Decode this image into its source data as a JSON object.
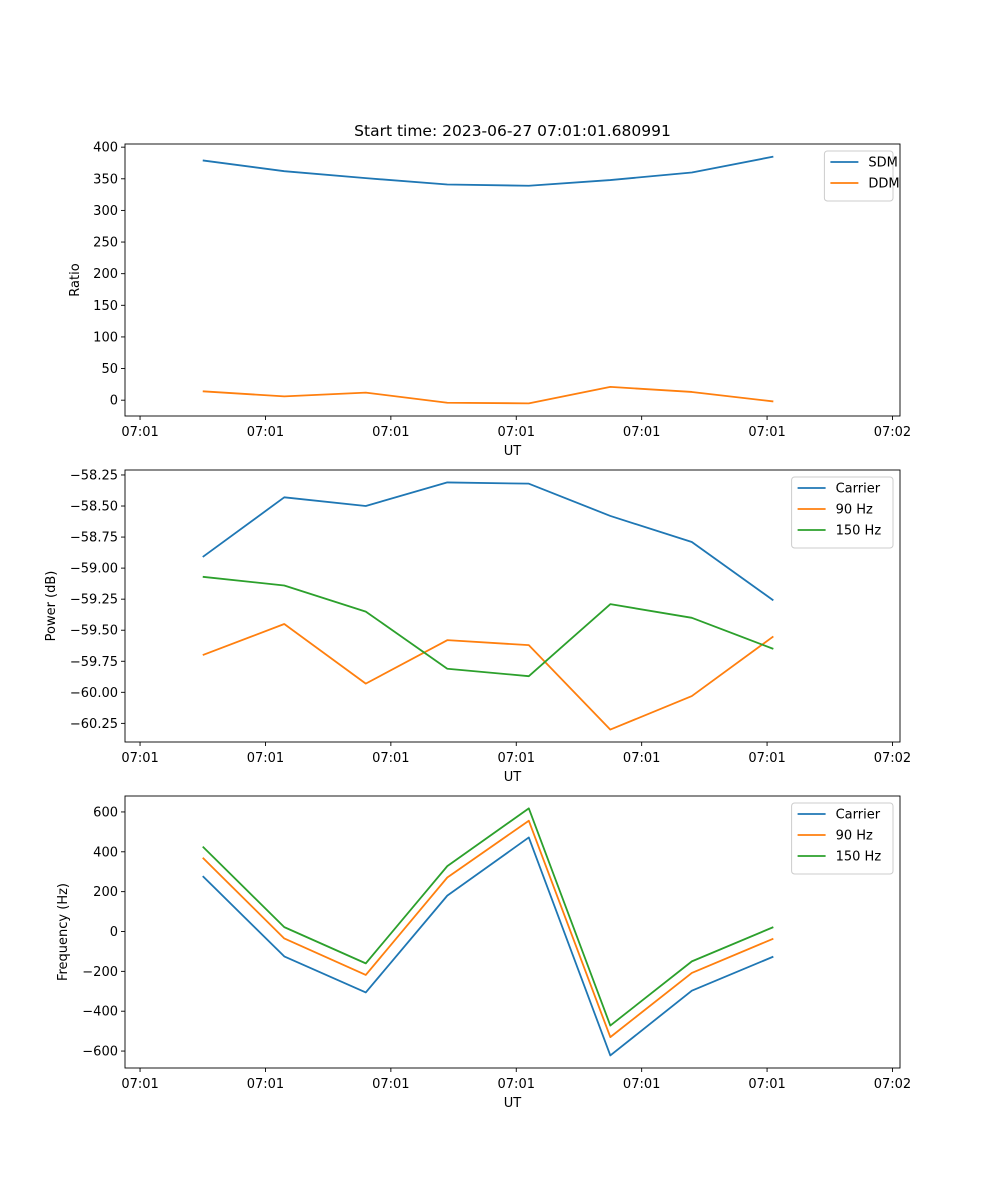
{
  "figure": {
    "title": "Start time: 2023-06-27 07:01:01.680991"
  },
  "colors": {
    "blue": "#1f77b4",
    "orange": "#ff7f0e",
    "green": "#2ca02c"
  },
  "chart_data": [
    {
      "type": "line",
      "title": "Start time: 2023-06-27 07:01:01.680991",
      "xlabel": "UT",
      "ylabel": "Ratio",
      "x_ticks": [
        "07:01",
        "07:01",
        "07:01",
        "07:01",
        "07:01",
        "07:01",
        "07:02"
      ],
      "x": [
        0.5,
        1.15,
        1.8,
        2.45,
        3.1,
        3.75,
        4.4,
        5.05
      ],
      "xlim": [
        -0.12,
        6.06
      ],
      "ylim": [
        -25,
        405
      ],
      "y_ticks": [
        0,
        50,
        100,
        150,
        200,
        250,
        300,
        350,
        400
      ],
      "legend": "top-right",
      "series": [
        {
          "name": "SDM",
          "color": "#1f77b4",
          "values": [
            379,
            362,
            351,
            341,
            339,
            348,
            360,
            385
          ]
        },
        {
          "name": "DDM",
          "color": "#ff7f0e",
          "values": [
            14,
            6,
            12,
            -4,
            -5,
            21,
            13,
            -2
          ]
        }
      ]
    },
    {
      "type": "line",
      "title": "",
      "xlabel": "UT",
      "ylabel": "Power (dB)",
      "x_ticks": [
        "07:01",
        "07:01",
        "07:01",
        "07:01",
        "07:01",
        "07:01",
        "07:02"
      ],
      "x": [
        0.5,
        1.15,
        1.8,
        2.45,
        3.1,
        3.75,
        4.4,
        5.05
      ],
      "xlim": [
        -0.12,
        6.06
      ],
      "ylim": [
        -60.4,
        -58.21
      ],
      "y_ticks": [
        -60.25,
        -60.0,
        -59.75,
        -59.5,
        -59.25,
        -59.0,
        -58.75,
        -58.5,
        -58.25
      ],
      "y_tick_labels": [
        "−60.25",
        "−60.00",
        "−59.75",
        "−59.50",
        "−59.25",
        "−59.00",
        "−58.75",
        "−58.50",
        "−58.25"
      ],
      "legend": "top-right",
      "series": [
        {
          "name": "Carrier",
          "color": "#1f77b4",
          "values": [
            -58.91,
            -58.43,
            -58.5,
            -58.31,
            -58.32,
            -58.58,
            -58.79,
            -59.26
          ]
        },
        {
          "name": "90 Hz",
          "color": "#ff7f0e",
          "values": [
            -59.7,
            -59.45,
            -59.93,
            -59.58,
            -59.62,
            -60.3,
            -60.03,
            -59.55
          ]
        },
        {
          "name": "150 Hz",
          "color": "#2ca02c",
          "values": [
            -59.07,
            -59.14,
            -59.35,
            -59.81,
            -59.87,
            -59.29,
            -59.4,
            -59.65
          ]
        }
      ]
    },
    {
      "type": "line",
      "title": "",
      "xlabel": "UT",
      "ylabel": "Frequency (Hz)",
      "x_ticks": [
        "07:01",
        "07:01",
        "07:01",
        "07:01",
        "07:01",
        "07:01",
        "07:02"
      ],
      "x": [
        0.5,
        1.15,
        1.8,
        2.45,
        3.1,
        3.75,
        4.4,
        5.05
      ],
      "xlim": [
        -0.12,
        6.06
      ],
      "ylim": [
        -685,
        680
      ],
      "y_ticks": [
        -600,
        -400,
        -200,
        0,
        200,
        400,
        600
      ],
      "y_tick_labels": [
        "−600",
        "−400",
        "−200",
        "0",
        "200",
        "400",
        "600"
      ],
      "legend": "top-right",
      "series": [
        {
          "name": "Carrier",
          "color": "#1f77b4",
          "values": [
            278,
            -125,
            -306,
            180,
            472,
            -622,
            -297,
            -126
          ]
        },
        {
          "name": "90 Hz",
          "color": "#ff7f0e",
          "values": [
            370,
            -35,
            -218,
            271,
            556,
            -530,
            -208,
            -36
          ]
        },
        {
          "name": "150 Hz",
          "color": "#2ca02c",
          "values": [
            426,
            22,
            -160,
            328,
            618,
            -472,
            -150,
            22
          ]
        }
      ]
    }
  ]
}
